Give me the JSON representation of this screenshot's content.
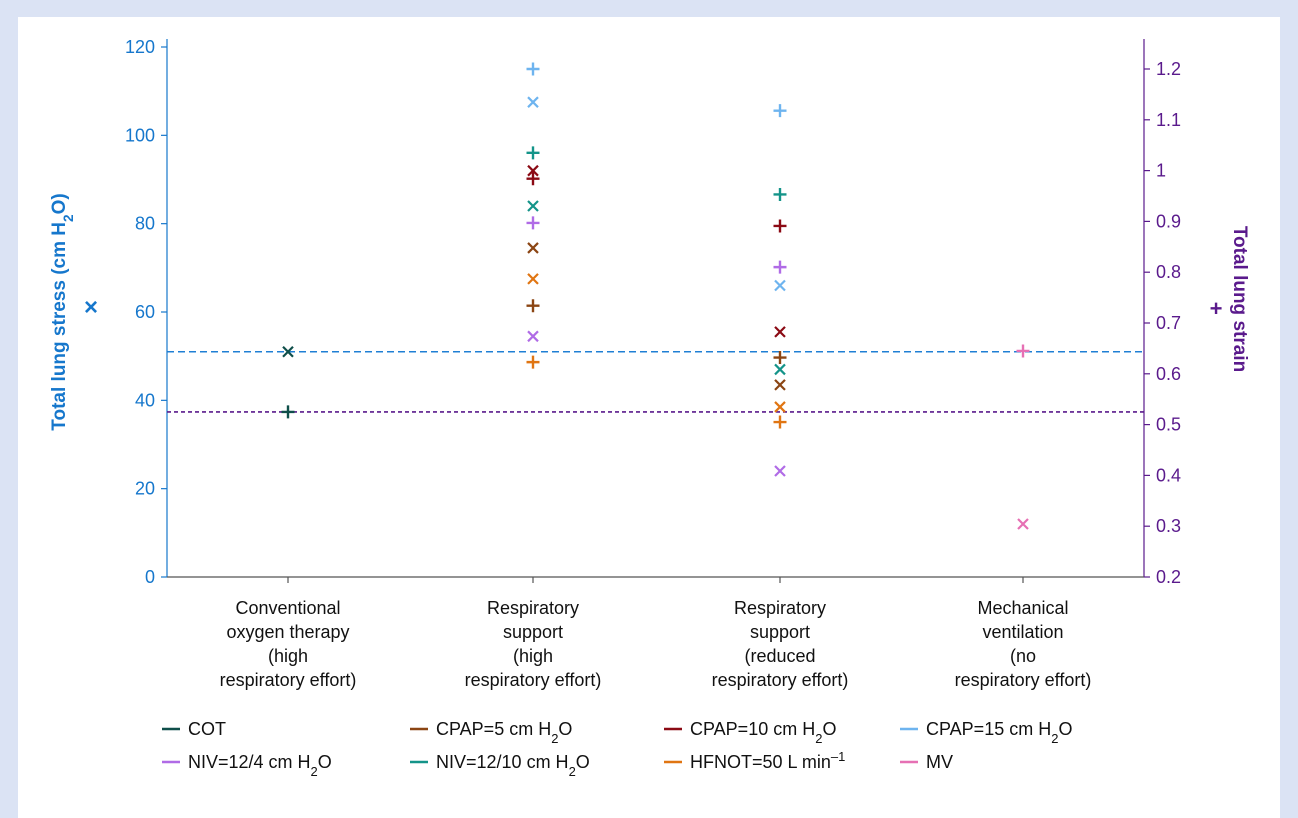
{
  "chart_data": {
    "type": "scatter",
    "categories": [
      [
        "Conventional",
        "oxygen therapy",
        "(high",
        "respiratory effort)"
      ],
      [
        "Respiratory",
        "support",
        "(high",
        "respiratory effort)"
      ],
      [
        "Respiratory",
        "support",
        "(reduced",
        "respiratory effort)"
      ],
      [
        "Mechanical",
        "ventilation",
        "(no",
        "respiratory effort)"
      ]
    ],
    "y_left": {
      "label": "Total lung stress (cm H2O)",
      "label_parts": [
        {
          "t": "Total lung stress (cm H",
          "sub": false
        },
        {
          "t": "2",
          "sub": true
        },
        {
          "t": "O)",
          "sub": false
        }
      ],
      "marker_symbol": "×",
      "range": [
        0,
        120
      ],
      "ticks": [
        "0",
        "20",
        "40",
        "60",
        "80",
        "100",
        "120"
      ],
      "color": "#1677cc"
    },
    "y_right": {
      "label": "Total lung strain",
      "marker_symbol": "+",
      "range": [
        0.2,
        1.2
      ],
      "ticks": [
        "0.2",
        "0.3",
        "0.4",
        "0.5",
        "0.6",
        "0.7",
        "0.8",
        "0.9",
        "1",
        "1.1",
        "1.2"
      ],
      "color": "#5a1a8c"
    },
    "reference_lines": [
      {
        "axis": "left",
        "value": 51,
        "color": "#1f7fd4"
      },
      {
        "axis": "right",
        "value": 0.525,
        "color": "#5a1a8c"
      }
    ],
    "series": [
      {
        "name": "COT",
        "color": "#0f4f4a",
        "stress": [
          {
            "x": 0,
            "y": 51
          }
        ],
        "strain": [
          {
            "x": 0,
            "y": 0.525
          }
        ]
      },
      {
        "name": "CPAP=5 cm H2O",
        "color": "#8b4513",
        "stress": [
          {
            "x": 1,
            "y": 74.5
          },
          {
            "x": 2,
            "y": 43.5
          }
        ],
        "strain": [
          {
            "x": 1,
            "y": 0.734
          },
          {
            "x": 2,
            "y": 0.632
          }
        ]
      },
      {
        "name": "CPAP=10 cm H2O",
        "color": "#8b0a14",
        "stress": [
          {
            "x": 1,
            "y": 92
          },
          {
            "x": 2,
            "y": 55.5
          }
        ],
        "strain": [
          {
            "x": 1,
            "y": 0.984
          },
          {
            "x": 2,
            "y": 0.891
          }
        ]
      },
      {
        "name": "CPAP=15 cm H2O",
        "color": "#6eb4ef",
        "stress": [
          {
            "x": 1,
            "y": 107.5
          },
          {
            "x": 2,
            "y": 66
          }
        ],
        "strain": [
          {
            "x": 1,
            "y": 1.2
          },
          {
            "x": 2,
            "y": 1.118
          }
        ]
      },
      {
        "name": "NIV=12/4 cm H2O",
        "color": "#b06be6",
        "stress": [
          {
            "x": 1,
            "y": 54.5
          },
          {
            "x": 2,
            "y": 24
          }
        ],
        "strain": [
          {
            "x": 1,
            "y": 0.897
          },
          {
            "x": 2,
            "y": 0.81
          }
        ]
      },
      {
        "name": "NIV=12/10 cm H2O",
        "color": "#149489",
        "stress": [
          {
            "x": 1,
            "y": 84
          },
          {
            "x": 2,
            "y": 47
          }
        ],
        "strain": [
          {
            "x": 1,
            "y": 1.035
          },
          {
            "x": 2,
            "y": 0.953
          }
        ]
      },
      {
        "name": "HFNOT=50 L min–1",
        "color": "#e07512",
        "stress": [
          {
            "x": 1,
            "y": 67.5
          },
          {
            "x": 2,
            "y": 38.5
          }
        ],
        "strain": [
          {
            "x": 1,
            "y": 0.623
          },
          {
            "x": 2,
            "y": 0.505
          }
        ]
      },
      {
        "name": "MV",
        "color": "#e670b4",
        "stress": [
          {
            "x": 3,
            "y": 12
          }
        ],
        "strain": [
          {
            "x": 3,
            "y": 0.645
          }
        ]
      }
    ],
    "legend": {
      "position": "bottom",
      "items": [
        [
          {
            "t": "COT",
            "sub": false
          }
        ],
        [
          {
            "t": "CPAP=5 cm H",
            "sub": false
          },
          {
            "t": "2",
            "sub": true
          },
          {
            "t": "O",
            "sub": false
          }
        ],
        [
          {
            "t": "CPAP=10 cm H",
            "sub": false
          },
          {
            "t": "2",
            "sub": true
          },
          {
            "t": "O",
            "sub": false
          }
        ],
        [
          {
            "t": "CPAP=15 cm H",
            "sub": false
          },
          {
            "t": "2",
            "sub": true
          },
          {
            "t": "O",
            "sub": false
          }
        ],
        [
          {
            "t": "NIV=12/4 cm H",
            "sub": false
          },
          {
            "t": "2",
            "sub": true
          },
          {
            "t": "O",
            "sub": false
          }
        ],
        [
          {
            "t": "NIV=12/10 cm H",
            "sub": false
          },
          {
            "t": "2",
            "sub": true
          },
          {
            "t": "O",
            "sub": false
          }
        ],
        [
          {
            "t": "HFNOT=50 L min",
            "sub": false
          },
          {
            "t": "–1",
            "sup": true
          }
        ],
        [
          {
            "t": "MV",
            "sub": false
          }
        ]
      ]
    },
    "grid": false
  }
}
